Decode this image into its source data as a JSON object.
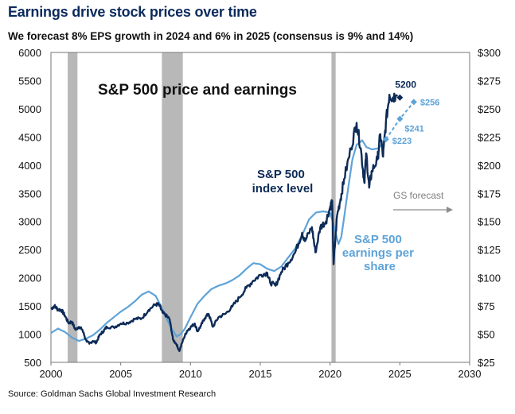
{
  "header": {
    "title": "Earnings drive stock prices over time",
    "subtitle": "We forecast 8% EPS growth in 2024 and 6% in 2025 (consensus is 9% and 14%)"
  },
  "footer": {
    "source": "Source: Goldman Sachs Global Investment Research"
  },
  "colors": {
    "index_line": "#0d2b57",
    "earnings_line": "#5ea3d8",
    "recession_shade": "#b8b8b8",
    "forecast_arrow": "#8c8c8c"
  },
  "chart_data": {
    "type": "line",
    "chart_title": "S&P 500 price and earnings",
    "x_range": [
      2000,
      2030
    ],
    "x_ticks": [
      "2000",
      "2005",
      "2010",
      "2015",
      "2020",
      "2025",
      "2030"
    ],
    "y_left": {
      "range": [
        500,
        6000
      ],
      "ticks": [
        "500",
        "1000",
        "1500",
        "2000",
        "2500",
        "3000",
        "3500",
        "4000",
        "4500",
        "5000",
        "5500",
        "6000"
      ]
    },
    "y_right": {
      "range": [
        25,
        300
      ],
      "ticks": [
        "$25",
        "$50",
        "$75",
        "$100",
        "$125",
        "$150",
        "$175",
        "$200",
        "$225",
        "$250",
        "$275",
        "$300"
      ]
    },
    "recessions": [
      [
        2001.2,
        2001.9
      ],
      [
        2007.95,
        2009.45
      ],
      [
        2020.1,
        2020.4
      ]
    ],
    "series": [
      {
        "name": "S&P 500 index level",
        "label_lines": [
          "S&P 500",
          "index level"
        ],
        "axis": "left",
        "points": [
          [
            2000.0,
            1450
          ],
          [
            2000.25,
            1500
          ],
          [
            2000.5,
            1440
          ],
          [
            2000.75,
            1430
          ],
          [
            2001.0,
            1330
          ],
          [
            2001.25,
            1200
          ],
          [
            2001.5,
            1220
          ],
          [
            2001.75,
            1080
          ],
          [
            2002.0,
            1130
          ],
          [
            2002.25,
            1080
          ],
          [
            2002.5,
            900
          ],
          [
            2002.75,
            830
          ],
          [
            2003.0,
            880
          ],
          [
            2003.25,
            850
          ],
          [
            2003.5,
            990
          ],
          [
            2003.75,
            1050
          ],
          [
            2004.0,
            1130
          ],
          [
            2004.5,
            1120
          ],
          [
            2005.0,
            1190
          ],
          [
            2005.5,
            1200
          ],
          [
            2006.0,
            1270
          ],
          [
            2006.5,
            1280
          ],
          [
            2007.0,
            1430
          ],
          [
            2007.5,
            1530
          ],
          [
            2007.75,
            1520
          ],
          [
            2008.0,
            1380
          ],
          [
            2008.25,
            1330
          ],
          [
            2008.5,
            1270
          ],
          [
            2008.75,
            900
          ],
          [
            2009.0,
            820
          ],
          [
            2009.2,
            700
          ],
          [
            2009.5,
            920
          ],
          [
            2009.75,
            1060
          ],
          [
            2010.0,
            1120
          ],
          [
            2010.3,
            1190
          ],
          [
            2010.5,
            1050
          ],
          [
            2010.75,
            1150
          ],
          [
            2011.0,
            1280
          ],
          [
            2011.3,
            1360
          ],
          [
            2011.6,
            1130
          ],
          [
            2012.0,
            1300
          ],
          [
            2012.5,
            1360
          ],
          [
            2013.0,
            1490
          ],
          [
            2013.5,
            1650
          ],
          [
            2014.0,
            1820
          ],
          [
            2014.5,
            1950
          ],
          [
            2015.0,
            2050
          ],
          [
            2015.5,
            2090
          ],
          [
            2015.7,
            1920
          ],
          [
            2016.1,
            1860
          ],
          [
            2016.5,
            2100
          ],
          [
            2017.0,
            2270
          ],
          [
            2017.5,
            2450
          ],
          [
            2018.0,
            2800
          ],
          [
            2018.2,
            2650
          ],
          [
            2018.7,
            2900
          ],
          [
            2018.95,
            2450
          ],
          [
            2019.3,
            2900
          ],
          [
            2019.7,
            3000
          ],
          [
            2020.0,
            3250
          ],
          [
            2020.15,
            3370
          ],
          [
            2020.25,
            2240
          ],
          [
            2020.5,
            3100
          ],
          [
            2020.75,
            3400
          ],
          [
            2021.0,
            3750
          ],
          [
            2021.5,
            4300
          ],
          [
            2021.9,
            4750
          ],
          [
            2022.2,
            4300
          ],
          [
            2022.45,
            3700
          ],
          [
            2022.6,
            4200
          ],
          [
            2022.8,
            3600
          ],
          [
            2023.0,
            3900
          ],
          [
            2023.4,
            4100
          ],
          [
            2023.6,
            4550
          ],
          [
            2023.8,
            4150
          ],
          [
            2024.0,
            4750
          ],
          [
            2024.25,
            5250
          ],
          [
            2024.5,
            5200
          ],
          [
            2024.7,
            5250
          ]
        ]
      },
      {
        "name": "S&P 500 earnings per share",
        "label_lines": [
          "S&P 500",
          "earnings per",
          "share"
        ],
        "axis": "right",
        "points": [
          [
            2000.0,
            51
          ],
          [
            2000.5,
            55
          ],
          [
            2001.0,
            52
          ],
          [
            2001.5,
            47
          ],
          [
            2002.0,
            44
          ],
          [
            2002.5,
            46
          ],
          [
            2003.0,
            49
          ],
          [
            2003.5,
            54
          ],
          [
            2004.0,
            60
          ],
          [
            2004.5,
            65
          ],
          [
            2005.0,
            70
          ],
          [
            2005.5,
            74
          ],
          [
            2006.0,
            79
          ],
          [
            2006.5,
            85
          ],
          [
            2007.0,
            88
          ],
          [
            2007.5,
            84
          ],
          [
            2008.0,
            72
          ],
          [
            2008.5,
            58
          ],
          [
            2009.0,
            48
          ],
          [
            2009.3,
            50
          ],
          [
            2009.6,
            55
          ],
          [
            2010.0,
            65
          ],
          [
            2010.5,
            77
          ],
          [
            2011.0,
            84
          ],
          [
            2011.5,
            90
          ],
          [
            2012.0,
            93
          ],
          [
            2012.5,
            95
          ],
          [
            2013.0,
            98
          ],
          [
            2013.5,
            102
          ],
          [
            2014.0,
            108
          ],
          [
            2014.5,
            113
          ],
          [
            2015.0,
            112
          ],
          [
            2015.5,
            108
          ],
          [
            2016.0,
            106
          ],
          [
            2016.5,
            110
          ],
          [
            2017.0,
            118
          ],
          [
            2017.5,
            126
          ],
          [
            2018.0,
            138
          ],
          [
            2018.5,
            152
          ],
          [
            2019.0,
            158
          ],
          [
            2019.5,
            159
          ],
          [
            2020.0,
            158
          ],
          [
            2020.3,
            145
          ],
          [
            2020.6,
            130
          ],
          [
            2020.8,
            136
          ],
          [
            2021.0,
            153
          ],
          [
            2021.3,
            180
          ],
          [
            2021.6,
            205
          ],
          [
            2021.9,
            218
          ],
          [
            2022.3,
            222
          ],
          [
            2022.6,
            216
          ],
          [
            2023.0,
            214
          ],
          [
            2023.5,
            215
          ],
          [
            2024.0,
            223
          ]
        ]
      }
    ],
    "forecasts": [
      {
        "name": "Index forecast",
        "axis": "left",
        "points": [
          [
            2024.7,
            5250
          ],
          [
            2025.0,
            5200
          ]
        ],
        "label": "5200"
      },
      {
        "name": "EPS forecast",
        "axis": "right",
        "points": [
          [
            2024.0,
            223
          ],
          [
            2025.0,
            241
          ],
          [
            2026.0,
            256
          ]
        ],
        "labels": [
          "$223",
          "$241",
          "$256"
        ]
      }
    ],
    "annotations": {
      "gs_forecast": "GS forecast"
    }
  }
}
